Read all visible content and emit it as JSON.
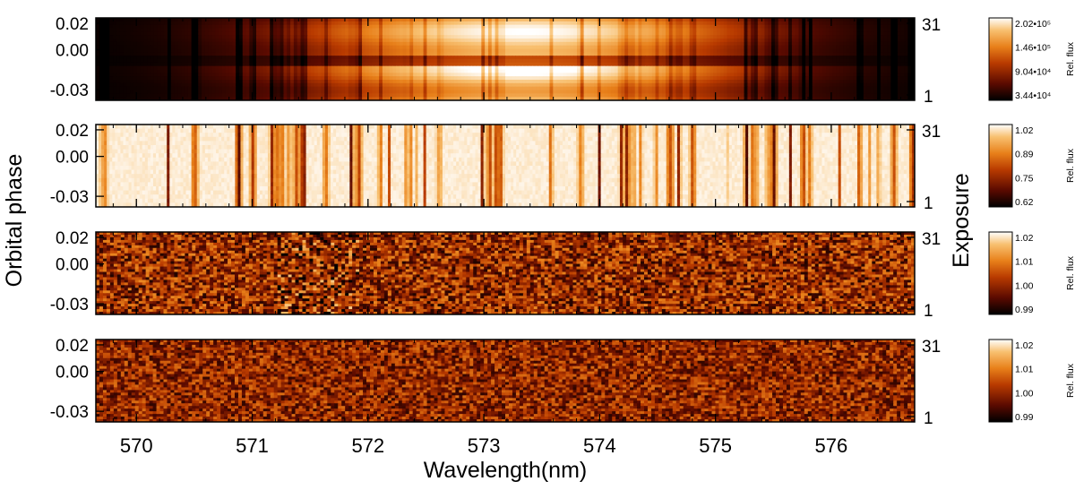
{
  "chart_data": {
    "type": "heatmap",
    "xlabel": "Wavelength(nm)",
    "ylabel_left": "Orbital phase",
    "ylabel_right": "Exposure",
    "xlim": [
      569.65,
      576.72
    ],
    "x_ticks": [
      570,
      571,
      572,
      573,
      574,
      575,
      576
    ],
    "x_tick_labels": [
      "570",
      "571",
      "572",
      "573",
      "574",
      "575",
      "576"
    ],
    "phase_range": [
      -0.038,
      0.024
    ],
    "phase_ticks": [
      0.02,
      0.0,
      -0.03
    ],
    "phase_tick_labels": [
      "0.02",
      "0.00",
      "-0.03"
    ],
    "exposure_range": [
      1,
      31
    ],
    "exposure_tick_labels": [
      "31",
      "1"
    ],
    "colormap": "black-red-orange-white",
    "colormap_stops": [
      "#000000",
      "#5a0a00",
      "#b83a00",
      "#e8801a",
      "#f8c070",
      "#ffffff"
    ],
    "panels": [
      {
        "id": "raw",
        "colorbar_label": "Rel. flux",
        "colorbar_ticks": [
          "2.02•10⁵",
          "1.46•10⁵",
          "9.04•10⁴",
          "3.44•10⁴"
        ],
        "description_type": "raw spectra"
      },
      {
        "id": "normalized",
        "colorbar_label": "Rel. flux",
        "colorbar_ticks": [
          "1.02",
          "0.89",
          "0.75",
          "0.62"
        ],
        "description_type": "normalized"
      },
      {
        "id": "residual-1",
        "colorbar_label": "Rel. flux",
        "colorbar_ticks": [
          "1.02",
          "1.01",
          "1.00",
          "0.99"
        ],
        "description_type": "residual"
      },
      {
        "id": "residual-2",
        "colorbar_label": "Rel. flux",
        "colorbar_ticks": [
          "1.02",
          "1.01",
          "1.00",
          "0.99"
        ],
        "description_type": "residual"
      }
    ]
  }
}
